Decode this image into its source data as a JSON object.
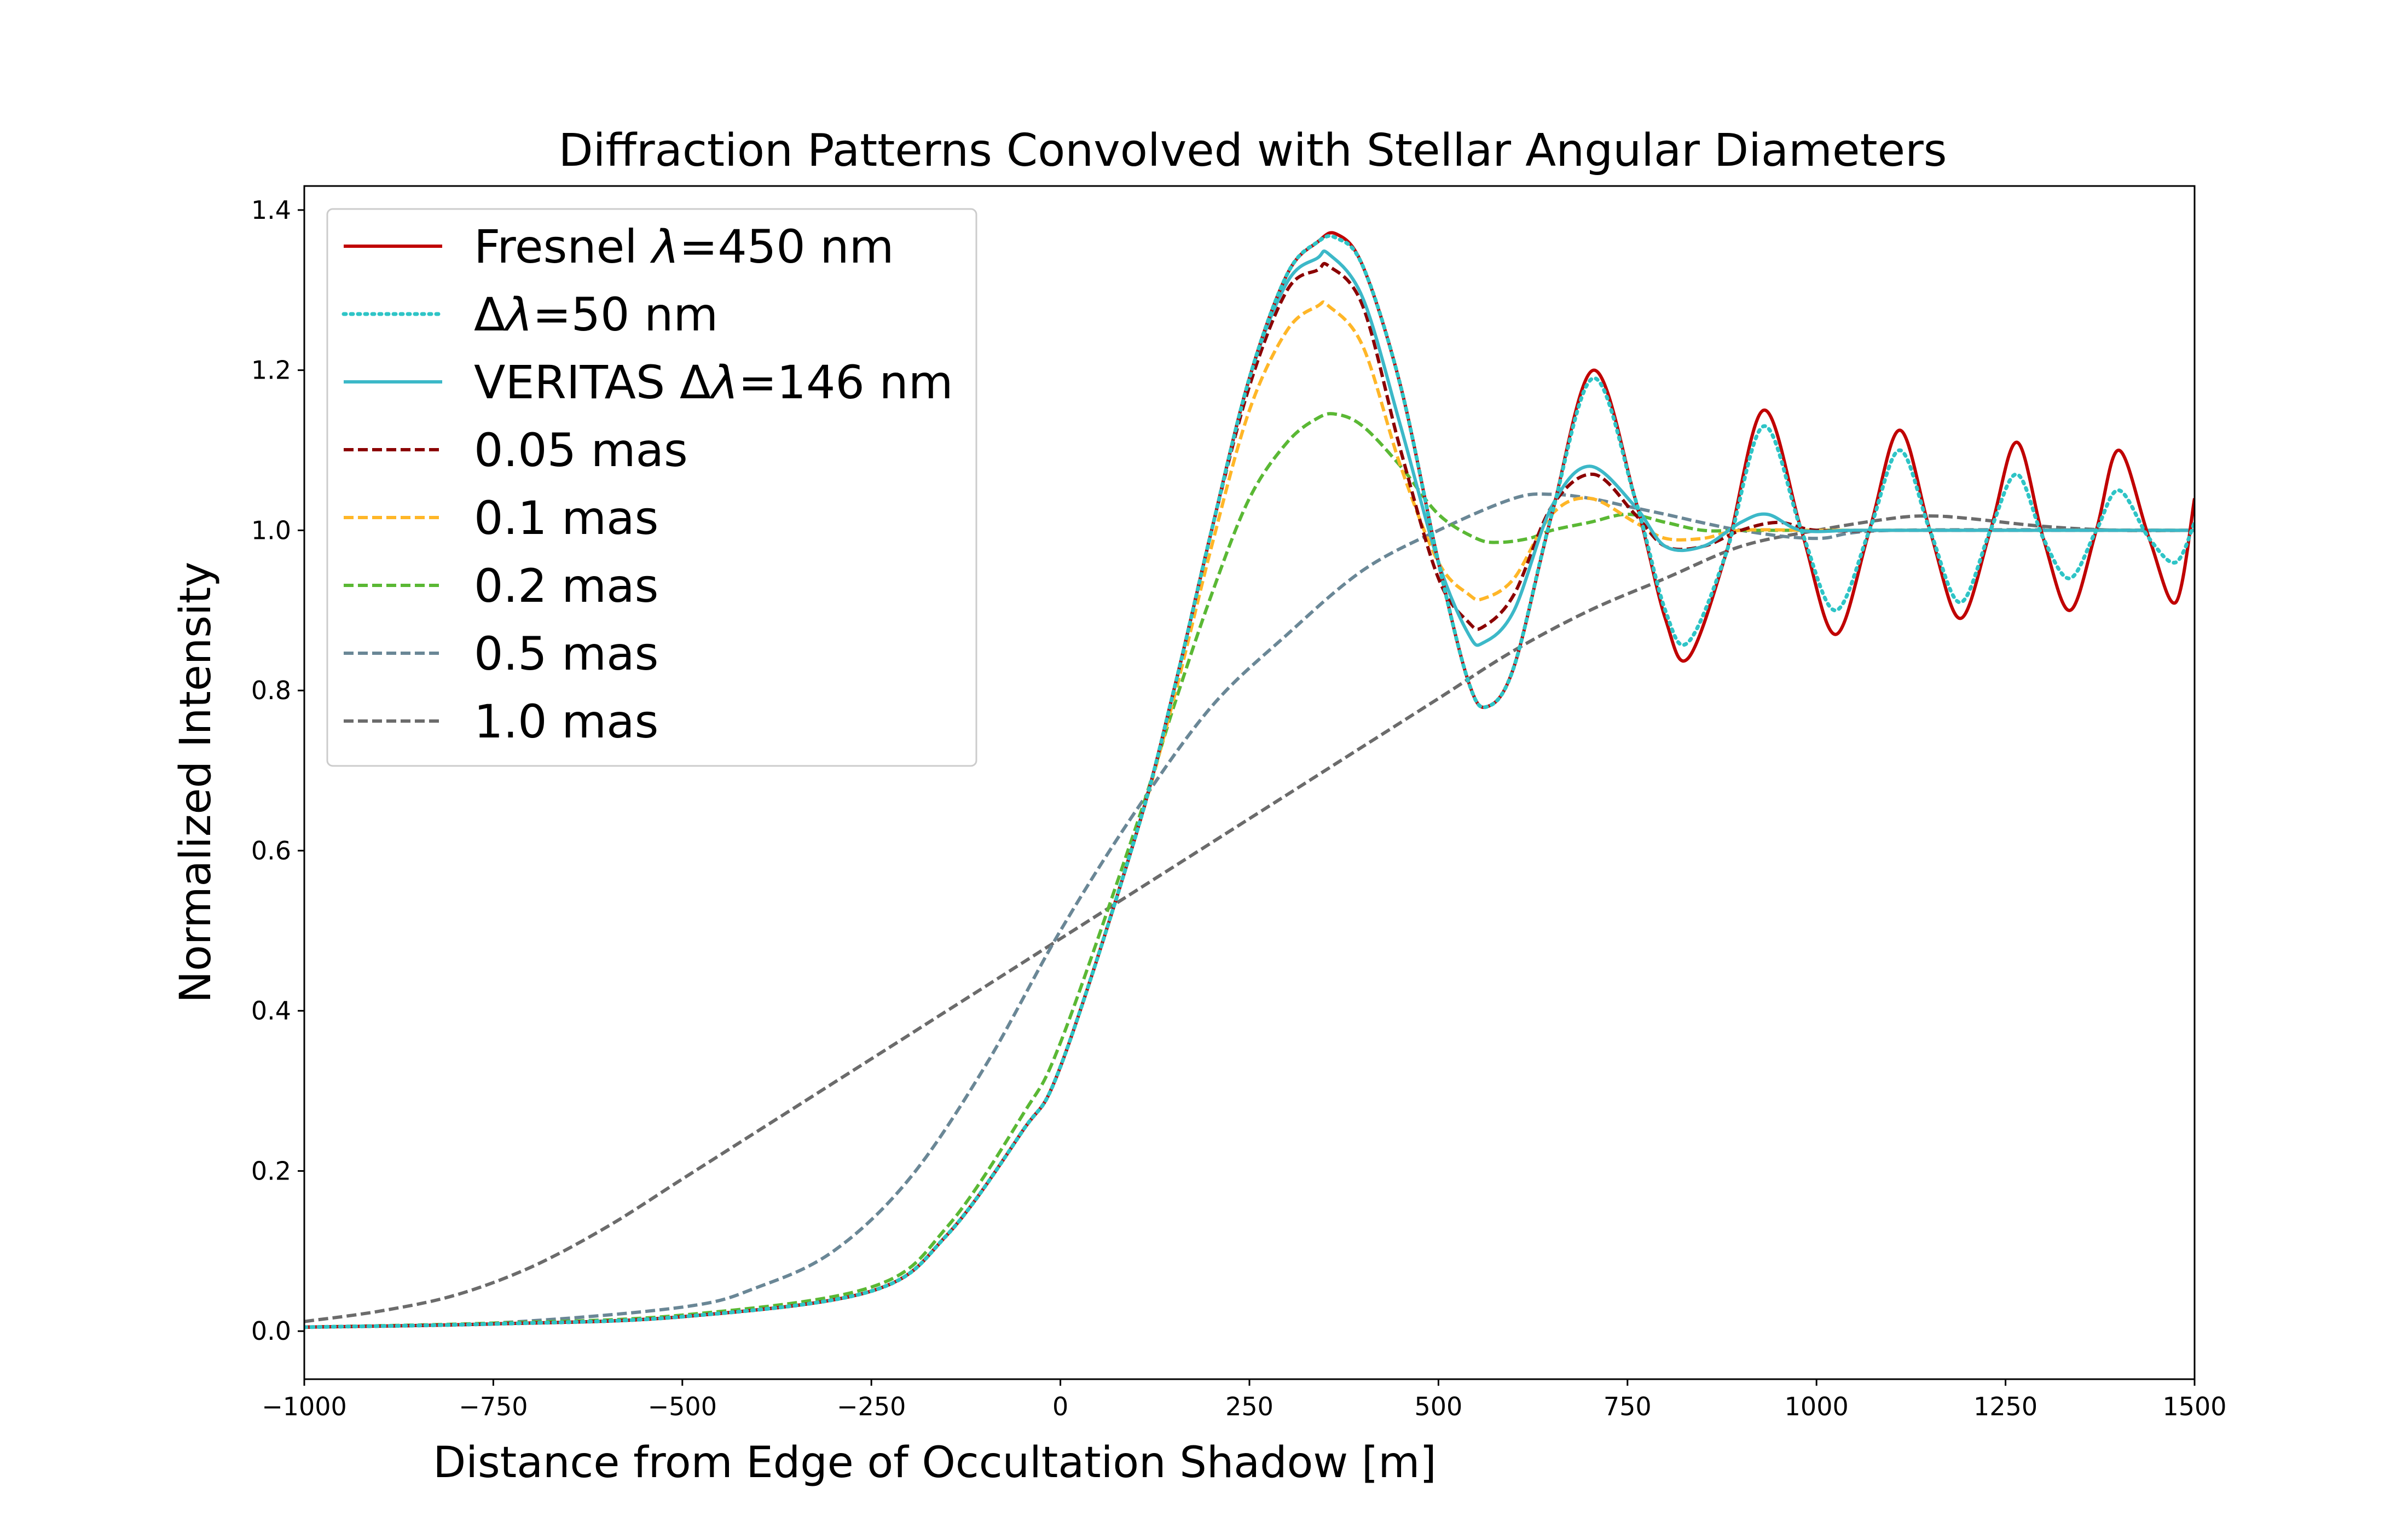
{
  "chart_data": {
    "type": "line",
    "title": "Diffraction Patterns Convolved with Stellar Angular Diameters",
    "xlabel": "Distance from Edge of Occultation Shadow [m]",
    "ylabel": "Normalized Intensity",
    "xlim": [
      -1000,
      1500
    ],
    "ylim": [
      -0.06,
      1.43
    ],
    "grid": false,
    "legend_position": "upper-left",
    "x_ticks": [
      -1000,
      -750,
      -500,
      -250,
      0,
      250,
      500,
      750,
      1000,
      1250,
      1500
    ],
    "x_tick_labels": [
      "−1000",
      "−750",
      "−500",
      "−250",
      "0",
      "250",
      "500",
      "750",
      "1000",
      "1250",
      "1500"
    ],
    "y_ticks": [
      0.0,
      0.2,
      0.4,
      0.6,
      0.8,
      1.0,
      1.2,
      1.4
    ],
    "y_tick_labels": [
      "0.0",
      "0.2",
      "0.4",
      "0.6",
      "0.8",
      "1.0",
      "1.2",
      "1.4"
    ],
    "series": [
      {
        "name": "Fresnel λ=450 nm",
        "legend_parts": [
          "Fresnel ",
          "λ",
          "=450 nm"
        ],
        "color": "#c00000",
        "style": "solid",
        "x": [
          -1000,
          -750,
          -500,
          -250,
          -150,
          -50,
          0,
          100,
          150,
          200,
          250,
          300,
          340,
          365,
          400,
          450,
          500,
          540,
          565,
          600,
          650,
          705,
          760,
          800,
          830,
          880,
          930,
          980,
          1025,
          1070,
          1110,
          1150,
          1190,
          1230,
          1265,
          1300,
          1335,
          1370,
          1400,
          1440,
          1475,
          1500
        ],
        "y": [
          0.005,
          0.009,
          0.018,
          0.05,
          0.12,
          0.25,
          0.33,
          0.62,
          0.8,
          1.0,
          1.19,
          1.32,
          1.36,
          1.37,
          1.33,
          1.18,
          0.96,
          0.81,
          0.78,
          0.83,
          1.02,
          1.2,
          1.04,
          0.89,
          0.84,
          0.97,
          1.15,
          1.0,
          0.87,
          1.0,
          1.125,
          1.0,
          0.89,
          1.0,
          1.11,
          0.99,
          0.9,
          1.0,
          1.1,
          0.99,
          0.91,
          1.04
        ]
      },
      {
        "name": "Δλ=50 nm",
        "legend_parts": [
          "Δ",
          "λ",
          "=50 nm"
        ],
        "color": "#2ec4c6",
        "style": "dotted",
        "x": [
          -1000,
          -750,
          -500,
          -250,
          -150,
          -50,
          0,
          100,
          150,
          200,
          250,
          300,
          340,
          365,
          400,
          450,
          500,
          540,
          565,
          600,
          650,
          705,
          760,
          800,
          830,
          880,
          930,
          980,
          1025,
          1070,
          1110,
          1150,
          1190,
          1230,
          1265,
          1300,
          1335,
          1370,
          1400,
          1440,
          1475,
          1500
        ],
        "y": [
          0.005,
          0.009,
          0.018,
          0.05,
          0.12,
          0.25,
          0.33,
          0.62,
          0.8,
          1.0,
          1.19,
          1.32,
          1.36,
          1.365,
          1.33,
          1.18,
          0.96,
          0.81,
          0.78,
          0.83,
          1.02,
          1.19,
          1.04,
          0.9,
          0.86,
          0.97,
          1.13,
          1.0,
          0.9,
          1.0,
          1.1,
          1.0,
          0.91,
          1.0,
          1.07,
          0.99,
          0.94,
          1.0,
          1.05,
          0.99,
          0.96,
          1.01
        ]
      },
      {
        "name": "VERITAS Δλ=146 nm",
        "legend_parts": [
          "VERITAS ",
          "Δ",
          "λ",
          "=146 nm"
        ],
        "color": "#3cb8c8",
        "style": "solid",
        "x": [
          -1000,
          -750,
          -500,
          -250,
          -150,
          -50,
          0,
          100,
          150,
          200,
          250,
          300,
          340,
          355,
          400,
          450,
          500,
          540,
          560,
          600,
          650,
          700,
          760,
          800,
          850,
          900,
          935,
          980,
          1050,
          1150,
          1300,
          1500
        ],
        "y": [
          0.005,
          0.009,
          0.018,
          0.05,
          0.12,
          0.25,
          0.33,
          0.62,
          0.8,
          1.0,
          1.19,
          1.31,
          1.34,
          1.345,
          1.29,
          1.13,
          0.96,
          0.87,
          0.86,
          0.9,
          1.03,
          1.08,
          1.03,
          0.98,
          0.98,
          1.01,
          1.02,
          1.0,
          1.0,
          1.0,
          1.0,
          1.0
        ]
      },
      {
        "name": "0.05 mas",
        "legend_parts": [
          "0.05 mas"
        ],
        "color": "#8b0000",
        "style": "dashed",
        "x": [
          -1000,
          -750,
          -500,
          -250,
          -150,
          -50,
          0,
          100,
          150,
          200,
          250,
          300,
          340,
          355,
          400,
          450,
          500,
          540,
          560,
          600,
          650,
          705,
          760,
          800,
          850,
          900,
          950,
          1000,
          1100,
          1200,
          1500
        ],
        "y": [
          0.005,
          0.009,
          0.018,
          0.05,
          0.12,
          0.25,
          0.33,
          0.62,
          0.8,
          1.0,
          1.18,
          1.3,
          1.325,
          1.33,
          1.28,
          1.1,
          0.94,
          0.885,
          0.88,
          0.92,
          1.03,
          1.07,
          1.02,
          0.98,
          0.98,
          1.0,
          1.01,
          1.0,
          1.0,
          1.0,
          1.0
        ]
      },
      {
        "name": "0.1 mas",
        "legend_parts": [
          "0.1 mas"
        ],
        "color": "#ffb627",
        "style": "dashed",
        "x": [
          -1000,
          -750,
          -500,
          -250,
          -150,
          -50,
          0,
          100,
          150,
          200,
          250,
          300,
          340,
          355,
          400,
          450,
          500,
          540,
          560,
          600,
          650,
          700,
          760,
          800,
          850,
          900,
          1000,
          1100,
          1500
        ],
        "y": [
          0.005,
          0.009,
          0.018,
          0.05,
          0.12,
          0.25,
          0.33,
          0.62,
          0.79,
          0.98,
          1.15,
          1.25,
          1.28,
          1.28,
          1.23,
          1.08,
          0.96,
          0.92,
          0.915,
          0.94,
          1.02,
          1.04,
          1.01,
          0.99,
          0.99,
          1.0,
          1.0,
          1.0,
          1.0
        ]
      },
      {
        "name": "0.2 mas",
        "legend_parts": [
          "0.2 mas"
        ],
        "color": "#5ab834",
        "style": "dashed",
        "x": [
          -1000,
          -750,
          -500,
          -250,
          -150,
          -50,
          0,
          100,
          150,
          200,
          250,
          300,
          340,
          365,
          400,
          450,
          500,
          550,
          580,
          620,
          650,
          700,
          750,
          800,
          850,
          900,
          1000,
          1100,
          1500
        ],
        "y": [
          0.005,
          0.01,
          0.02,
          0.055,
          0.13,
          0.27,
          0.36,
          0.63,
          0.78,
          0.92,
          1.04,
          1.11,
          1.14,
          1.145,
          1.13,
          1.08,
          1.02,
          0.99,
          0.985,
          0.99,
          1.0,
          1.01,
          1.02,
          1.01,
          1.0,
          1.0,
          1.0,
          1.0,
          1.0
        ]
      },
      {
        "name": "0.5 mas",
        "legend_parts": [
          "0.5 mas"
        ],
        "color": "#6a8796",
        "style": "dashed",
        "x": [
          -1000,
          -750,
          -500,
          -400,
          -300,
          -200,
          -100,
          0,
          100,
          200,
          300,
          400,
          500,
          600,
          650,
          700,
          750,
          800,
          900,
          1000,
          1100,
          1500
        ],
        "y": [
          0.005,
          0.01,
          0.03,
          0.055,
          0.1,
          0.19,
          0.33,
          0.5,
          0.65,
          0.78,
          0.87,
          0.95,
          1.0,
          1.04,
          1.045,
          1.04,
          1.03,
          1.02,
          1.0,
          0.99,
          1.0,
          1.0
        ]
      },
      {
        "name": "1.0 mas",
        "legend_parts": [
          "1.0 mas"
        ],
        "color": "#6b6b6b",
        "style": "dashed",
        "x": [
          -1000,
          -900,
          -800,
          -700,
          -600,
          -500,
          -400,
          -300,
          -200,
          -100,
          0,
          100,
          200,
          300,
          400,
          500,
          600,
          700,
          800,
          900,
          1000,
          1100,
          1150,
          1200,
          1300,
          1400,
          1500
        ],
        "y": [
          0.012,
          0.025,
          0.045,
          0.08,
          0.13,
          0.19,
          0.25,
          0.31,
          0.37,
          0.43,
          0.49,
          0.55,
          0.61,
          0.67,
          0.73,
          0.79,
          0.85,
          0.9,
          0.94,
          0.98,
          1.0,
          1.015,
          1.018,
          1.015,
          1.005,
          1.0,
          1.0
        ]
      }
    ]
  }
}
